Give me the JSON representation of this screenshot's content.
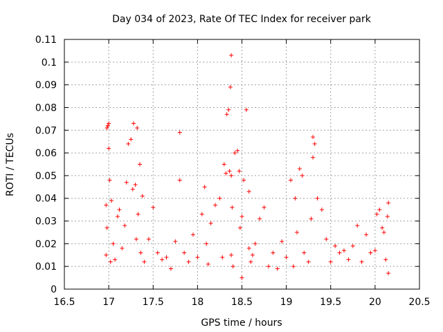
{
  "chart_data": {
    "type": "scatter",
    "title": "Day 034 of 2023, Rate Of TEC Index for receiver park",
    "xlabel": "GPS time / hours",
    "ylabel": "ROTI / TECUs",
    "xlim": [
      16.5,
      20.5
    ],
    "ylim": [
      0,
      0.11
    ],
    "xticks": [
      16.5,
      17,
      17.5,
      18,
      18.5,
      19,
      19.5,
      20,
      20.5
    ],
    "xtick_labels": [
      "16.5",
      "17",
      "17.5",
      "18",
      "18.5",
      "19",
      "19.5",
      "20",
      "20.5"
    ],
    "yticks": [
      0,
      0.01,
      0.02,
      0.03,
      0.04,
      0.05,
      0.06,
      0.07,
      0.08,
      0.09,
      0.1,
      0.11
    ],
    "ytick_labels": [
      "0",
      "0.01",
      "0.02",
      "0.03",
      "0.04",
      "0.05",
      "0.06",
      "0.07",
      "0.08",
      "0.09",
      "0.1",
      "0.11"
    ],
    "grid": true,
    "marker": "+",
    "color": "#ff0000",
    "series": [
      {
        "name": "ROTI",
        "x": [
          16.97,
          16.97,
          16.98,
          16.98,
          16.99,
          17.0,
          17.0,
          17.01,
          17.02,
          17.03,
          17.05,
          17.07,
          17.1,
          17.12,
          17.15,
          17.18,
          17.2,
          17.22,
          17.25,
          17.27,
          17.28,
          17.3,
          17.31,
          17.32,
          17.33,
          17.35,
          17.36,
          17.38,
          17.4,
          17.45,
          17.5,
          17.55,
          17.6,
          17.65,
          17.7,
          17.75,
          17.8,
          17.8,
          17.85,
          17.9,
          17.95,
          18.0,
          18.05,
          18.08,
          18.1,
          18.12,
          18.15,
          18.2,
          18.25,
          18.28,
          18.3,
          18.32,
          18.33,
          18.35,
          18.36,
          18.37,
          18.38,
          18.38,
          18.38,
          18.39,
          18.4,
          18.42,
          18.45,
          18.47,
          18.48,
          18.5,
          18.5,
          18.52,
          18.55,
          18.58,
          18.58,
          18.6,
          18.62,
          18.65,
          18.7,
          18.75,
          18.8,
          18.85,
          18.9,
          18.95,
          19.0,
          19.05,
          19.08,
          19.1,
          19.12,
          19.15,
          19.18,
          19.2,
          19.25,
          19.28,
          19.3,
          19.3,
          19.32,
          19.35,
          19.4,
          19.45,
          19.5,
          19.55,
          19.6,
          19.65,
          19.7,
          19.75,
          19.8,
          19.85,
          19.9,
          19.95,
          20.0,
          20.02,
          20.05,
          20.08,
          20.1,
          20.12,
          20.14,
          20.15,
          20.15
        ],
        "y": [
          0.015,
          0.037,
          0.027,
          0.071,
          0.072,
          0.073,
          0.062,
          0.048,
          0.012,
          0.039,
          0.02,
          0.013,
          0.032,
          0.035,
          0.018,
          0.028,
          0.047,
          0.064,
          0.066,
          0.044,
          0.073,
          0.046,
          0.022,
          0.071,
          0.033,
          0.055,
          0.016,
          0.041,
          0.012,
          0.022,
          0.036,
          0.016,
          0.013,
          0.014,
          0.009,
          0.021,
          0.069,
          0.048,
          0.016,
          0.012,
          0.024,
          0.014,
          0.033,
          0.045,
          0.02,
          0.011,
          0.029,
          0.037,
          0.04,
          0.014,
          0.055,
          0.051,
          0.077,
          0.079,
          0.052,
          0.089,
          0.103,
          0.05,
          0.015,
          0.036,
          0.01,
          0.06,
          0.061,
          0.052,
          0.027,
          0.032,
          0.005,
          0.048,
          0.079,
          0.043,
          0.018,
          0.012,
          0.015,
          0.02,
          0.031,
          0.036,
          0.01,
          0.016,
          0.009,
          0.021,
          0.014,
          0.048,
          0.01,
          0.04,
          0.025,
          0.053,
          0.05,
          0.016,
          0.012,
          0.031,
          0.058,
          0.067,
          0.064,
          0.04,
          0.035,
          0.022,
          0.012,
          0.019,
          0.016,
          0.017,
          0.013,
          0.019,
          0.028,
          0.012,
          0.024,
          0.016,
          0.017,
          0.033,
          0.035,
          0.027,
          0.025,
          0.013,
          0.032,
          0.038,
          0.007
        ]
      }
    ]
  }
}
